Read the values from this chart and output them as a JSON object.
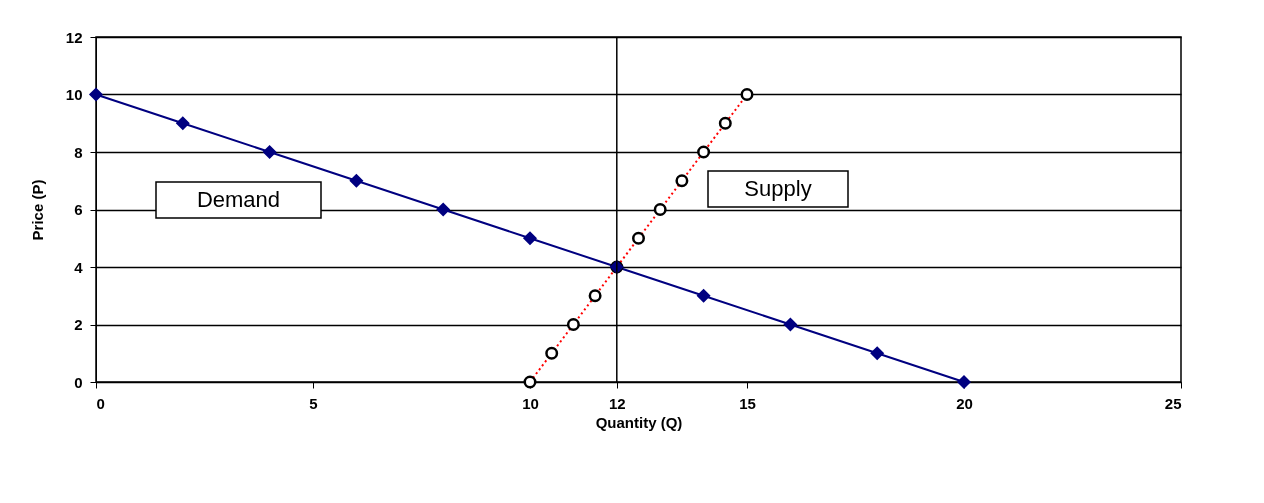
{
  "chart_data": {
    "type": "line",
    "xlabel": "Quantity (Q)",
    "ylabel": "Price (P)",
    "xlim": [
      0,
      25
    ],
    "xticks": [
      0,
      5,
      10,
      12,
      15,
      20,
      25
    ],
    "ylim": [
      0,
      12
    ],
    "yticks": [
      0,
      2,
      4,
      6,
      8,
      10,
      12
    ],
    "grid": "y",
    "legend": false,
    "ref_lines": [
      {
        "axis": "x",
        "value": 12,
        "color": "#000000"
      }
    ],
    "series": [
      {
        "name": "Demand",
        "color": "#000080",
        "marker": "diamond",
        "x": [
          0,
          2,
          4,
          6,
          8,
          10,
          12,
          14,
          16,
          18,
          20
        ],
        "values": [
          10,
          9,
          8,
          7,
          6,
          5,
          4,
          3,
          2,
          1,
          0
        ]
      },
      {
        "name": "Supply",
        "color": "#ff0000",
        "marker": "circle",
        "line_style": "dotted",
        "x": [
          10,
          10.5,
          11,
          11.5,
          12,
          12.5,
          13,
          13.5,
          14,
          14.5,
          15
        ],
        "values": [
          0,
          1,
          2,
          3,
          4,
          5,
          6,
          7,
          8,
          9,
          10
        ]
      }
    ]
  }
}
